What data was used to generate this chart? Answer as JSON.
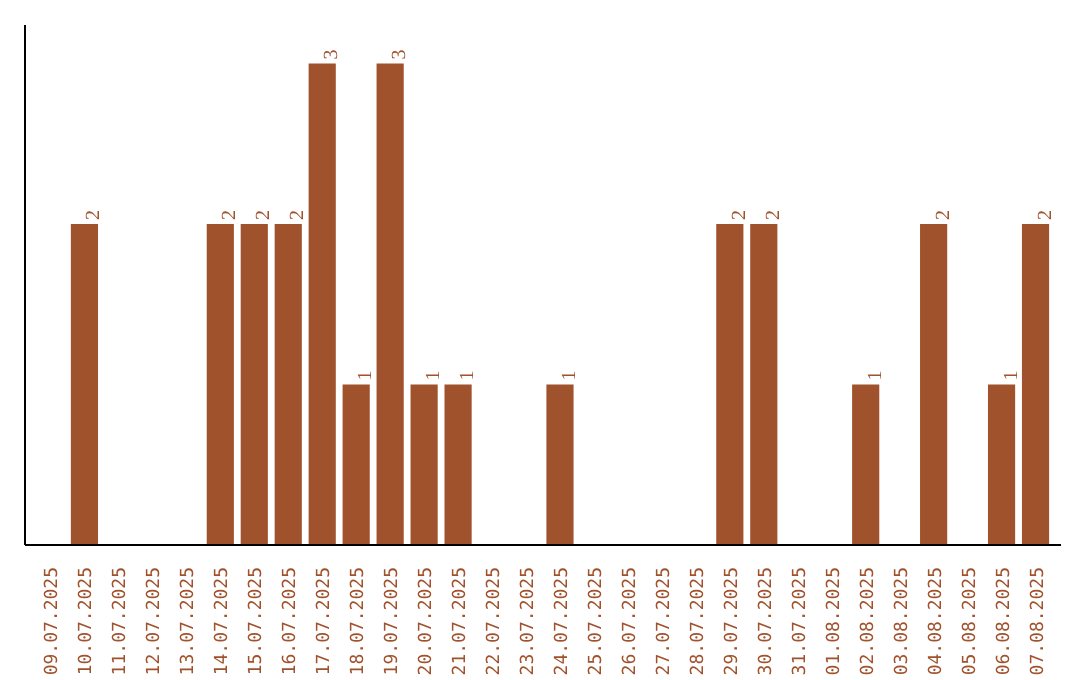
{
  "chart_data": {
    "type": "bar",
    "categories": [
      "09.07.2025",
      "10.07.2025",
      "11.07.2025",
      "12.07.2025",
      "13.07.2025",
      "14.07.2025",
      "15.07.2025",
      "16.07.2025",
      "17.07.2025",
      "18.07.2025",
      "19.07.2025",
      "20.07.2025",
      "21.07.2025",
      "22.07.2025",
      "23.07.2025",
      "24.07.2025",
      "25.07.2025",
      "26.07.2025",
      "27.07.2025",
      "28.07.2025",
      "29.07.2025",
      "30.07.2025",
      "31.07.2025",
      "01.08.2025",
      "02.08.2025",
      "03.08.2025",
      "04.08.2025",
      "05.08.2025",
      "06.08.2025",
      "07.08.2025"
    ],
    "values": [
      0,
      2,
      0,
      0,
      0,
      2,
      2,
      2,
      3,
      1,
      3,
      1,
      1,
      0,
      0,
      1,
      0,
      0,
      0,
      0,
      2,
      2,
      0,
      0,
      1,
      0,
      2,
      0,
      1,
      2
    ],
    "value_labels": [
      null,
      "2",
      null,
      null,
      null,
      "2",
      "2",
      "2",
      "3",
      "1",
      "3",
      "1",
      "1",
      null,
      null,
      "1",
      null,
      null,
      null,
      null,
      "2",
      "2",
      null,
      null,
      "1",
      null,
      "2",
      null,
      "1",
      "2"
    ],
    "color": "#a0522d",
    "tick_labels": "x",
    "grid": false
  }
}
